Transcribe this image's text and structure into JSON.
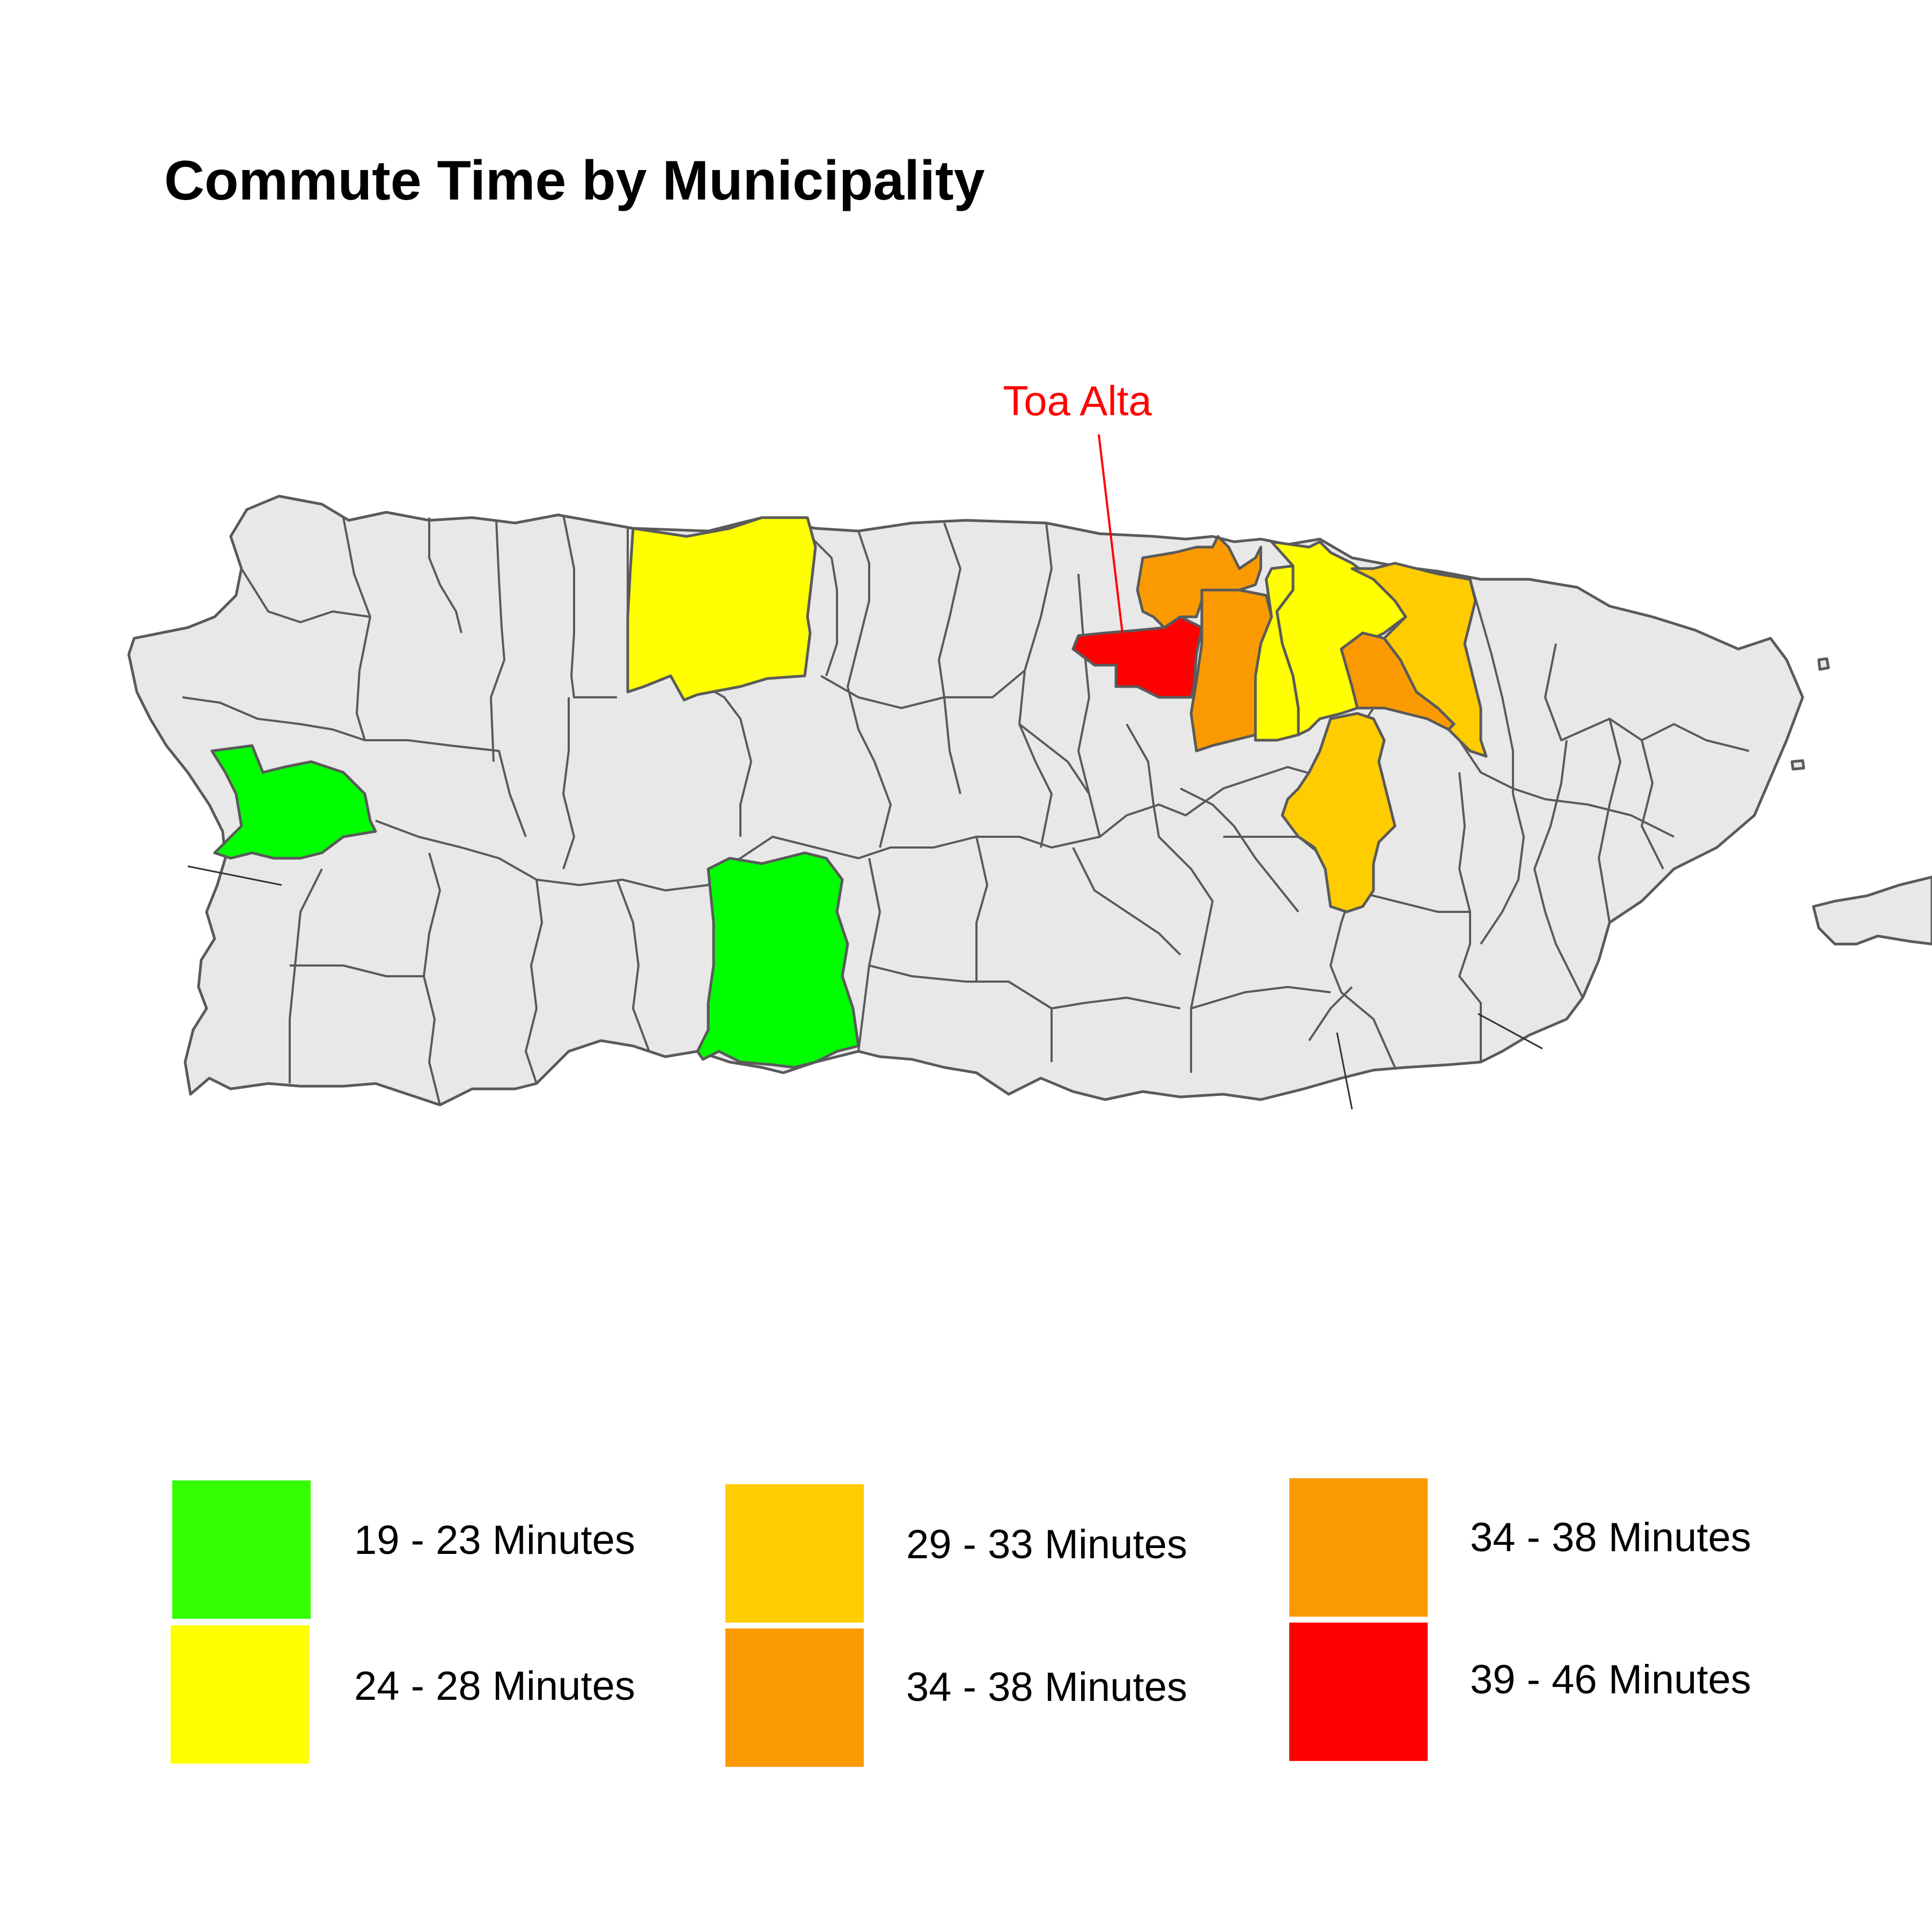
{
  "title": "Commute Time by Municipality",
  "annotation": {
    "label": "Toa Alta",
    "color": "#ff0000"
  },
  "map": {
    "land_color": "#e8e8e8",
    "border_color": "#5a5a5a",
    "highlighted": [
      {
        "name": "Toa Alta",
        "category": "39 - 46 Minutes",
        "color": "#ff0000"
      },
      {
        "name": "Bayamón",
        "category": "34 - 38 Minutes",
        "color": "#fb9a00"
      },
      {
        "name": "Toa Baja",
        "category": "34 - 38 Minutes",
        "color": "#fb9a00"
      },
      {
        "name": "Trujillo Alto",
        "category": "34 - 38 Minutes",
        "color": "#fb9a00"
      },
      {
        "name": "Carolina",
        "category": "29 - 33 Minutes",
        "color": "#ffcc00"
      },
      {
        "name": "Caguas",
        "category": "29 - 33 Minutes",
        "color": "#ffcc00"
      },
      {
        "name": "Guaynabo",
        "category": "24 - 28 Minutes",
        "color": "#ffff00"
      },
      {
        "name": "San Juan",
        "category": "24 - 28 Minutes",
        "color": "#ffff00"
      },
      {
        "name": "Arecibo",
        "category": "24 - 28 Minutes",
        "color": "#ffff00"
      },
      {
        "name": "Mayagüez",
        "category": "19 - 23 Minutes",
        "color": "#00ff00"
      },
      {
        "name": "Ponce",
        "category": "19 - 23 Minutes",
        "color": "#00ff00"
      }
    ]
  },
  "legend": [
    {
      "label": "19 - 23 Minutes",
      "color": "#33ff00"
    },
    {
      "label": "24 - 28 Minutes",
      "color": "#ffff00"
    },
    {
      "label": "29 - 33 Minutes",
      "color": "#ffcc00"
    },
    {
      "label": "34 - 38 Minutes",
      "color": "#fb9a00"
    },
    {
      "label": "34 - 38 Minutes",
      "color": "#fb9a00"
    },
    {
      "label": "39 - 46 Minutes",
      "color": "#ff0000"
    }
  ]
}
